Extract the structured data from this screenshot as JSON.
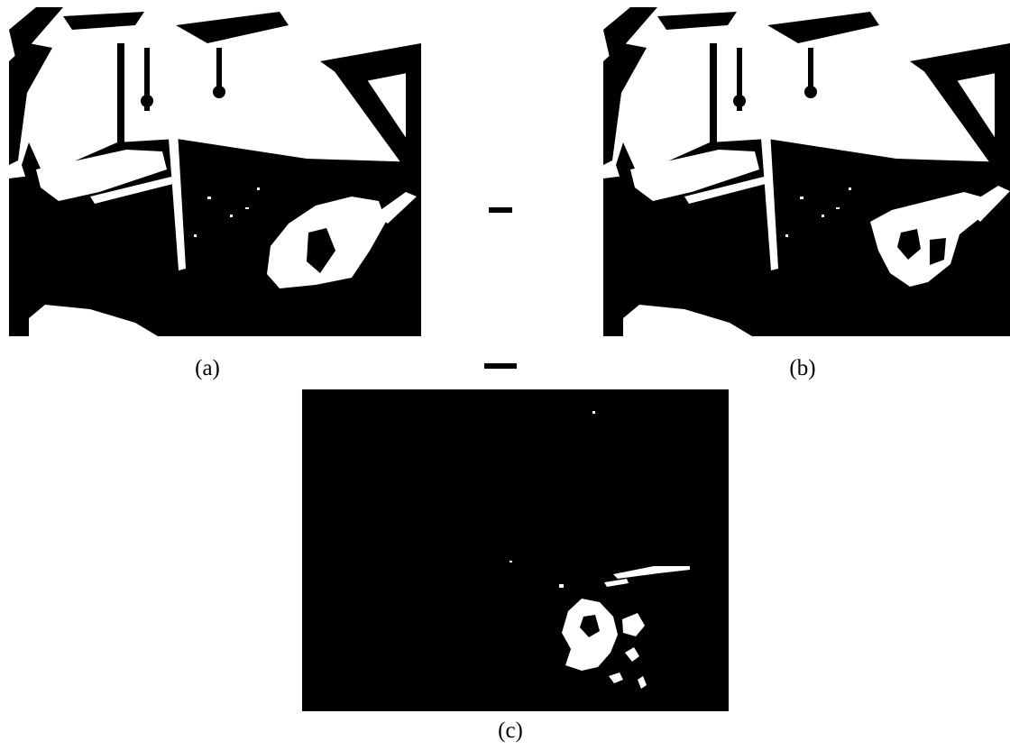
{
  "figure": {
    "panels": [
      {
        "id": "a",
        "caption": "(a)",
        "kind": "binary-frame"
      },
      {
        "id": "b",
        "caption": "(b)",
        "kind": "binary-frame"
      },
      {
        "id": "c",
        "caption": "(c)",
        "kind": "difference-mask"
      }
    ],
    "operators": [
      "–",
      "–"
    ],
    "colors": {
      "foreground": "#ffffff",
      "background": "#000000",
      "page": "#ffffff",
      "text": "#000000"
    }
  }
}
